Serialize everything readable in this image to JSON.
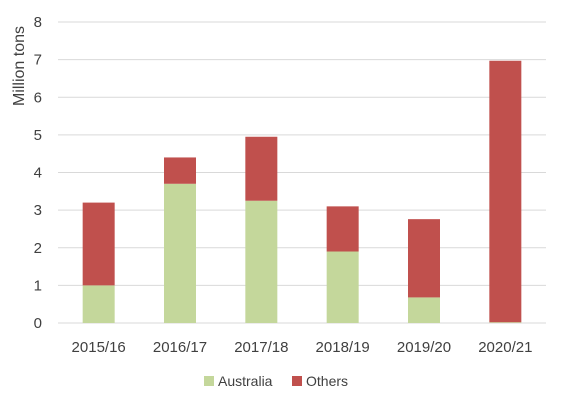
{
  "chart_data": {
    "type": "bar",
    "stacked": true,
    "categories": [
      "2015/16",
      "2016/17",
      "2017/18",
      "2018/19",
      "2019/20",
      "2020/21"
    ],
    "series": [
      {
        "name": "Australia",
        "values": [
          1.0,
          3.7,
          3.25,
          1.9,
          0.68,
          0.02
        ],
        "color": "#c4d79b"
      },
      {
        "name": "Others",
        "values": [
          2.2,
          0.7,
          1.7,
          1.2,
          2.08,
          6.95
        ],
        "color": "#c0504d"
      }
    ],
    "ylabel": "Million tons",
    "ylim": [
      0,
      8
    ],
    "yticks": [
      "0",
      "1",
      "2",
      "3",
      "4",
      "5",
      "6",
      "7",
      "8"
    ],
    "grid": true,
    "legend": "bottom"
  }
}
